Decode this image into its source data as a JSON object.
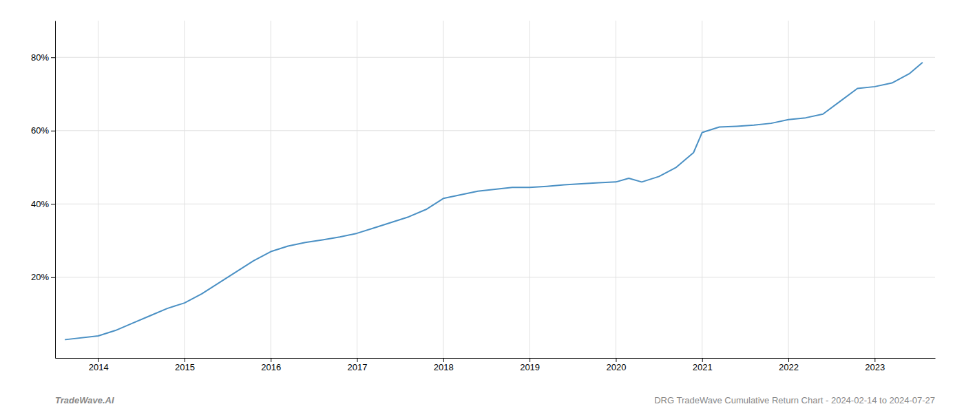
{
  "chart_data": {
    "type": "line",
    "annotations": [
      "TradeWave.AI",
      "DRG TradeWave Cumulative Return Chart - 2024-02-14 to 2024-07-27"
    ],
    "color": "#4a90c4",
    "grid": true,
    "x": [
      2013.62,
      2014.0,
      2014.2,
      2014.4,
      2014.6,
      2014.8,
      2015.0,
      2015.2,
      2015.4,
      2015.6,
      2015.8,
      2016.0,
      2016.2,
      2016.4,
      2016.6,
      2016.8,
      2017.0,
      2017.2,
      2017.4,
      2017.6,
      2017.8,
      2018.0,
      2018.2,
      2018.4,
      2018.6,
      2018.8,
      2019.0,
      2019.2,
      2019.4,
      2019.6,
      2019.8,
      2020.0,
      2020.15,
      2020.3,
      2020.5,
      2020.7,
      2020.9,
      2021.0,
      2021.2,
      2021.4,
      2021.6,
      2021.8,
      2022.0,
      2022.2,
      2022.4,
      2022.6,
      2022.8,
      2023.0,
      2023.2,
      2023.4,
      2023.55
    ],
    "values": [
      3.0,
      4.0,
      5.5,
      7.5,
      9.5,
      11.5,
      13.0,
      15.5,
      18.5,
      21.5,
      24.5,
      27.0,
      28.5,
      29.5,
      30.2,
      31.0,
      32.0,
      33.5,
      35.0,
      36.5,
      38.5,
      41.5,
      42.5,
      43.5,
      44.0,
      44.5,
      44.5,
      44.8,
      45.2,
      45.5,
      45.8,
      46.0,
      47.0,
      46.0,
      47.5,
      50.0,
      54.0,
      59.5,
      61.0,
      61.2,
      61.5,
      62.0,
      63.0,
      63.5,
      64.5,
      68.0,
      71.5,
      72.0,
      73.0,
      75.5,
      78.5
    ],
    "xlim": [
      2013.5,
      2023.7
    ],
    "xticks": [
      2014,
      2015,
      2016,
      2017,
      2018,
      2019,
      2020,
      2021,
      2022,
      2023
    ],
    "ylim": [
      -2,
      90
    ],
    "yticks": [
      {
        "value": 20,
        "label": "20%"
      },
      {
        "value": 40,
        "label": "40%"
      },
      {
        "value": 60,
        "label": "60%"
      },
      {
        "value": 80,
        "label": "80%"
      }
    ]
  }
}
